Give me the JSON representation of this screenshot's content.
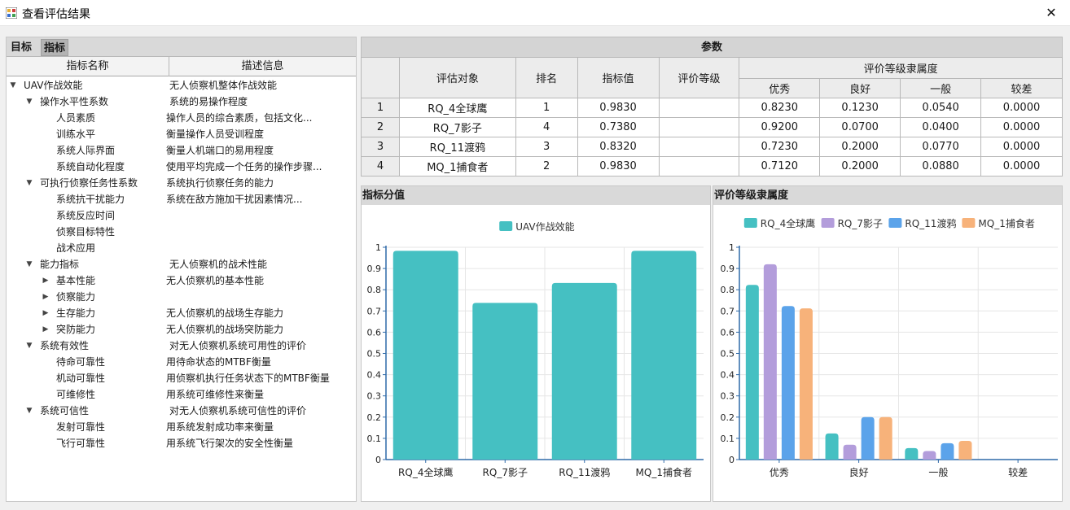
{
  "window": {
    "title": "查看评估结果",
    "close_glyph": "✕"
  },
  "left": {
    "tabs": [
      "目标",
      "指标"
    ],
    "columns": [
      "指标名称",
      "描述信息"
    ],
    "tree": [
      {
        "name": "UAV作战效能",
        "desc": "无人侦察机整体作战效能",
        "level": 0,
        "toggle": "expanded"
      },
      {
        "name": "操作水平性系数",
        "desc": "系统的易操作程度",
        "level": 1,
        "toggle": "expanded"
      },
      {
        "name": "人员素质",
        "desc": "操作人员的综合素质，包括文化...",
        "level": 2,
        "toggle": "none"
      },
      {
        "name": "训练水平",
        "desc": "衡量操作人员受训程度",
        "level": 2,
        "toggle": "none"
      },
      {
        "name": "系统人际界面",
        "desc": "衡量人机端口的易用程度",
        "level": 2,
        "toggle": "none"
      },
      {
        "name": "系统自动化程度",
        "desc": "使用平均完成一个任务的操作步骤...",
        "level": 2,
        "toggle": "none"
      },
      {
        "name": "可执行侦察任务性系数",
        "desc": "系统执行侦察任务的能力",
        "level": 1,
        "toggle": "expanded"
      },
      {
        "name": "系统抗干扰能力",
        "desc": "系统在敌方施加干扰因素情况...",
        "level": 2,
        "toggle": "none"
      },
      {
        "name": "系统反应时间",
        "desc": "",
        "level": 2,
        "toggle": "none"
      },
      {
        "name": "侦察目标特性",
        "desc": "",
        "level": 2,
        "toggle": "none"
      },
      {
        "name": "战术应用",
        "desc": "",
        "level": 2,
        "toggle": "none"
      },
      {
        "name": "能力指标",
        "desc": "无人侦察机的战术性能",
        "level": 1,
        "toggle": "expanded"
      },
      {
        "name": "基本性能",
        "desc": "无人侦察机的基本性能",
        "level": 2,
        "toggle": "collapsed"
      },
      {
        "name": "侦察能力",
        "desc": "",
        "level": 2,
        "toggle": "collapsed"
      },
      {
        "name": "生存能力",
        "desc": "无人侦察机的战场生存能力",
        "level": 2,
        "toggle": "collapsed"
      },
      {
        "name": "突防能力",
        "desc": "无人侦察机的战场突防能力",
        "level": 2,
        "toggle": "collapsed"
      },
      {
        "name": "系统有效性",
        "desc": "对无人侦察机系统可用性的评价",
        "level": 1,
        "toggle": "expanded"
      },
      {
        "name": "待命可靠性",
        "desc": "用待命状态的MTBF衡量",
        "level": 2,
        "toggle": "none"
      },
      {
        "name": "机动可靠性",
        "desc": "用侦察机执行任务状态下的MTBF衡量",
        "level": 2,
        "toggle": "none"
      },
      {
        "name": "可维修性",
        "desc": "用系统可维修性来衡量",
        "level": 2,
        "toggle": "none"
      },
      {
        "name": "系统可信性",
        "desc": "对无人侦察机系统可信性的评价",
        "level": 1,
        "toggle": "expanded"
      },
      {
        "name": "发射可靠性",
        "desc": "用系统发射成功率来衡量",
        "level": 2,
        "toggle": "none"
      },
      {
        "name": "飞行可靠性",
        "desc": "用系统飞行架次的安全性衡量",
        "level": 2,
        "toggle": "none"
      }
    ]
  },
  "params": {
    "title": "参数",
    "headers": {
      "object": "评估对象",
      "rank": "排名",
      "value": "指标值",
      "grade": "评价等级",
      "membership": "评价等级隶属度",
      "levels": [
        "优秀",
        "良好",
        "一般",
        "较差"
      ]
    },
    "rows": [
      {
        "idx": "1",
        "object": "RQ_4全球鹰",
        "rank": "1",
        "value": "0.9830",
        "grade": "",
        "m": [
          "0.8230",
          "0.1230",
          "0.0540",
          "0.0000"
        ]
      },
      {
        "idx": "2",
        "object": "RQ_7影子",
        "rank": "4",
        "value": "0.7380",
        "grade": "",
        "m": [
          "0.9200",
          "0.0700",
          "0.0400",
          "0.0000"
        ]
      },
      {
        "idx": "3",
        "object": "RQ_11渡鸦",
        "rank": "3",
        "value": "0.8320",
        "grade": "",
        "m": [
          "0.7230",
          "0.2000",
          "0.0770",
          "0.0000"
        ]
      },
      {
        "idx": "4",
        "object": "MQ_1捕食者",
        "rank": "2",
        "value": "0.9830",
        "grade": "",
        "m": [
          "0.7120",
          "0.2000",
          "0.0880",
          "0.0000"
        ]
      }
    ]
  },
  "chart_data": [
    {
      "panel_title": "指标分值",
      "type": "bar",
      "categories": [
        "RQ_4全球鹰",
        "RQ_7影子",
        "RQ_11渡鸦",
        "MQ_1捕食者"
      ],
      "series": [
        {
          "name": "UAV作战效能",
          "color": "#45c0c2",
          "values": [
            0.983,
            0.738,
            0.832,
            0.983
          ]
        }
      ],
      "ylim": [
        0,
        1
      ],
      "yticks": [
        "0",
        "0.1",
        "0.2",
        "0.3",
        "0.4",
        "0.5",
        "0.6",
        "0.7",
        "0.8",
        "0.9",
        "1"
      ],
      "grid": true,
      "legend": "top-center"
    },
    {
      "panel_title": "评价等级隶属度",
      "type": "bar",
      "categories": [
        "优秀",
        "良好",
        "一般",
        "较差"
      ],
      "series": [
        {
          "name": "RQ_4全球鹰",
          "color": "#45c0c2",
          "values": [
            0.823,
            0.123,
            0.054,
            0.0
          ]
        },
        {
          "name": "RQ_7影子",
          "color": "#b39ddb",
          "values": [
            0.92,
            0.07,
            0.04,
            0.0
          ]
        },
        {
          "name": "RQ_11渡鸦",
          "color": "#5ba3ea",
          "values": [
            0.723,
            0.2,
            0.077,
            0.0
          ]
        },
        {
          "name": "MQ_1捕食者",
          "color": "#f7b27a",
          "values": [
            0.712,
            0.2,
            0.088,
            0.0
          ]
        }
      ],
      "ylim": [
        0,
        1
      ],
      "yticks": [
        "0",
        "0.1",
        "0.2",
        "0.3",
        "0.4",
        "0.5",
        "0.6",
        "0.7",
        "0.8",
        "0.9",
        "1"
      ],
      "grid": true,
      "legend": "top-center"
    }
  ]
}
